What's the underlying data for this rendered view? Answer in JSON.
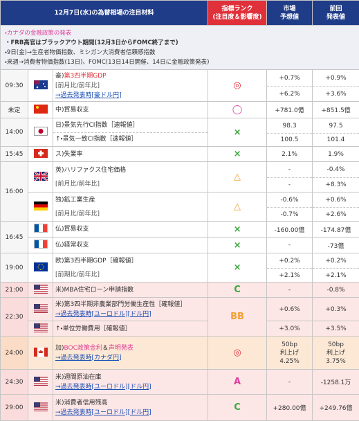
{
  "header": {
    "title": "12月7日(水)の為替相場の注目材料",
    "rank": [
      "指標ランク",
      "(注目度＆影響度)"
    ],
    "forecast": [
      "市場",
      "予想値"
    ],
    "previous": [
      "前回",
      "発表値"
    ]
  },
  "notes": [
    "・カナダの金融政策の発表",
    "・FRB高官はブラックアウト期間(12月3日からFOMC終了まで)",
    "・9日(金)→生産者物価指数、ミシガン大消費者信頼感指数",
    "・来週→消費者物価指数(13日)、FOMC(13日14日開催、14日に金融政策発表)"
  ],
  "rows": [
    {
      "time": "09:30",
      "events": [
        {
          "name": [
            "豪)",
            "第3四半期GDP"
          ],
          "details": [
            "[前月比/前年比]",
            "→過去発表時[豪ドル円]"
          ],
          "rank": "◎",
          "forecast": [
            "+0.7%",
            "+6.2%"
          ],
          "previous": [
            "+0.9%",
            "+3.6%"
          ]
        }
      ]
    },
    {
      "time": "未定",
      "events": [
        {
          "name": [
            "中)貿易収支"
          ],
          "rank": "◯",
          "forecast": [
            "+781.0億"
          ],
          "previous": [
            "+851.5億"
          ]
        }
      ]
    },
    {
      "time": "14:00",
      "events": [
        {
          "name": [
            "日)景気先行CI指数［速報値］"
          ],
          "rank": "×",
          "forecast": [
            "98.3"
          ],
          "previous": [
            "97.5"
          ]
        },
        {
          "name": [
            "↑・景気一致CI指数［速報値］"
          ],
          "forecast": [
            "100.5"
          ],
          "previous": [
            "101.4"
          ]
        }
      ]
    },
    {
      "time": "15:45",
      "events": [
        {
          "name": [
            "ス)失業率"
          ],
          "rank": "×",
          "forecast": [
            "2.1%"
          ],
          "previous": [
            "1.9%"
          ]
        }
      ]
    },
    {
      "time": "16:00",
      "events": [
        {
          "name": [
            "英)ハリファクス住宅価格"
          ],
          "details": [
            "[前月比/前年比]"
          ],
          "rank": "△",
          "forecast": [
            "-",
            "-"
          ],
          "previous": [
            "-0.4%",
            "+8.3%"
          ]
        },
        {
          "name": [
            "独)鉱工業生産"
          ],
          "details": [
            "[前月比/前年比]"
          ],
          "rank": "△",
          "forecast": [
            "-0.6%",
            "-0.7%"
          ],
          "previous": [
            "+0.6%",
            "+2.6%"
          ]
        }
      ]
    },
    {
      "time": "16:45",
      "events": [
        {
          "name": [
            "仏)貿易収支"
          ],
          "rank": "×",
          "forecast": [
            "-160.00億"
          ],
          "previous": [
            "-174.87億"
          ]
        },
        {
          "name": [
            "仏)経常収支"
          ],
          "rank": "×",
          "forecast": [
            "-"
          ],
          "previous": [
            "-73億"
          ]
        }
      ]
    },
    {
      "time": "19:00",
      "events": [
        {
          "name": [
            "欧)第3四半期GDP［確報値］"
          ],
          "details": [
            "[前期比/前年比]"
          ],
          "rank": "×",
          "forecast": [
            "+0.2%",
            "+2.1%"
          ],
          "previous": [
            "+0.2%",
            "+2.1%"
          ]
        }
      ]
    },
    {
      "time": "21:00",
      "events": [
        {
          "name": [
            "米)MBA住宅ローン申請指数"
          ],
          "rank": "C",
          "forecast": [
            "-"
          ],
          "previous": [
            "-0.8%"
          ]
        }
      ]
    },
    {
      "time": "22:30",
      "events": [
        {
          "name": [
            "米)第3四半期非農業部門労働生産性［確報値］"
          ],
          "details": [
            "→過去発表時[ユーロドル][ドル円]"
          ],
          "rank": "BB",
          "forecast": [
            "+0.6%"
          ],
          "previous": [
            "+0.3%"
          ]
        },
        {
          "name": [
            "↑・単位労働費用［確報値］"
          ],
          "forecast": [
            "+3.0%"
          ],
          "previous": [
            "+3.5%"
          ]
        }
      ]
    },
    {
      "time": "24:00",
      "events": [
        {
          "name": [
            "加)",
            "BOC政策金利",
            "＆",
            "声明発表"
          ],
          "details": [
            "→過去発表時[カナダ円]"
          ],
          "rank": "◎",
          "forecast": [
            "50bp",
            "利上げ",
            "4.25%"
          ],
          "previous": [
            "50bp",
            "利上げ",
            "3.75%"
          ]
        }
      ]
    },
    {
      "time": "24:30",
      "events": [
        {
          "name": [
            "米)週間原油在庫"
          ],
          "details": [
            "→過去発表時[ユーロドル][ドル円]"
          ],
          "rank": "A",
          "forecast": [
            "-"
          ],
          "previous": [
            "-1258.1万"
          ]
        }
      ]
    },
    {
      "time": "29:00",
      "events": [
        {
          "name": [
            "米)消費者信用残高"
          ],
          "details": [
            "→過去発表時[ユーロドル][ドル円]"
          ],
          "rank": "C",
          "forecast": [
            "+280.00億"
          ],
          "previous": [
            "+249.76億"
          ]
        }
      ]
    }
  ]
}
